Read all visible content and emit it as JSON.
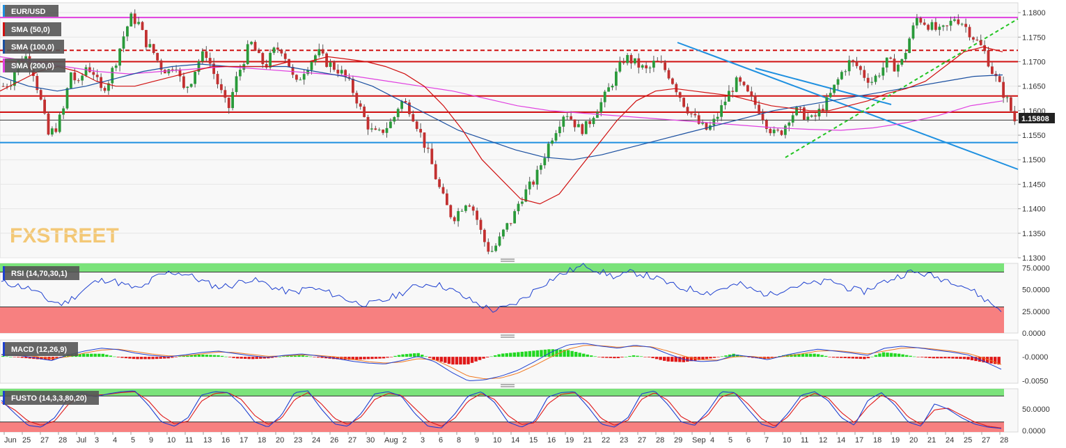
{
  "chart_data": [
    {
      "type": "candlestick",
      "symbol": "EUR/USD",
      "indicators": [
        "SMA (50,0)",
        "SMA (100,0)",
        "SMA (200,0)"
      ],
      "price_label": "1.15808",
      "watermark": "FXSTREET",
      "ylim": [
        1.13,
        1.182
      ],
      "y_ticks": [
        "1.1800",
        "1.1750",
        "1.1700",
        "1.1650",
        "1.1600",
        "1.1550",
        "1.1500",
        "1.1450",
        "1.1400",
        "1.1350",
        "1.1300"
      ],
      "x_ticks": [
        "Jun",
        "25",
        "27",
        "28",
        "Jul",
        "3",
        "4",
        "5",
        "9",
        "10",
        "11",
        "13",
        "16",
        "17",
        "18",
        "20",
        "23",
        "24",
        "26",
        "27",
        "30",
        "Aug",
        "2",
        "3",
        "6",
        "8",
        "9",
        "10",
        "14",
        "15",
        "16",
        "19",
        "21",
        "22",
        "23",
        "27",
        "28",
        "29",
        "Sep",
        "4",
        "5",
        "6",
        "7",
        "10",
        "11",
        "12",
        "14",
        "17",
        "18",
        "19",
        "20",
        "21",
        "24",
        "25",
        "27",
        "28"
      ],
      "horizontal_levels": [
        {
          "value": 1.179,
          "color": "#e040e0",
          "style": "solid"
        },
        {
          "value": 1.1723,
          "color": "#d01010",
          "style": "dashed"
        },
        {
          "value": 1.17,
          "color": "#d01010",
          "style": "solid"
        },
        {
          "value": 1.163,
          "color": "#d01010",
          "style": "solid"
        },
        {
          "value": 1.1597,
          "color": "#d01010",
          "style": "solid"
        },
        {
          "value": 1.1535,
          "color": "#1e90e0",
          "style": "solid"
        }
      ],
      "close_path": [
        1.165,
        1.166,
        1.17,
        1.171,
        1.168,
        1.162,
        1.155,
        1.1565,
        1.16,
        1.168,
        1.165,
        1.169,
        1.168,
        1.164,
        1.166,
        1.17,
        1.175,
        1.179,
        1.178,
        1.174,
        1.172,
        1.169,
        1.168,
        1.17,
        1.164,
        1.166,
        1.17,
        1.172,
        1.168,
        1.164,
        1.16,
        1.166,
        1.17,
        1.174,
        1.171,
        1.169,
        1.172,
        1.173,
        1.17,
        1.165,
        1.168,
        1.17,
        1.172,
        1.17,
        1.169,
        1.168,
        1.166,
        1.163,
        1.159,
        1.156,
        1.155,
        1.1565,
        1.158,
        1.162,
        1.161,
        1.158,
        1.154,
        1.15,
        1.145,
        1.141,
        1.138,
        1.14,
        1.142,
        1.139,
        1.134,
        1.131,
        1.133,
        1.136,
        1.138,
        1.142,
        1.144,
        1.146,
        1.15,
        1.154,
        1.157,
        1.16,
        1.158,
        1.156,
        1.157,
        1.16,
        1.162,
        1.165,
        1.168,
        1.171,
        1.17,
        1.169,
        1.168,
        1.17,
        1.169,
        1.167,
        1.164,
        1.161,
        1.159,
        1.157,
        1.156,
        1.158,
        1.161,
        1.164,
        1.166,
        1.164,
        1.162,
        1.16,
        1.157,
        1.155,
        1.156,
        1.159,
        1.16,
        1.159,
        1.158,
        1.16,
        1.162,
        1.165,
        1.168,
        1.17,
        1.169,
        1.167,
        1.166,
        1.168,
        1.17,
        1.169,
        1.17,
        1.175,
        1.179,
        1.178,
        1.177,
        1.176,
        1.177,
        1.179,
        1.178,
        1.176,
        1.174,
        1.172,
        1.168,
        1.165,
        1.162,
        1.158
      ],
      "sma50": [
        1.164,
        1.166,
        1.168,
        1.169,
        1.168,
        1.166,
        1.165,
        1.165,
        1.166,
        1.167,
        1.168,
        1.169,
        1.169,
        1.169,
        1.169,
        1.17,
        1.17,
        1.171,
        1.1705,
        1.17,
        1.169,
        1.1675,
        1.165,
        1.161,
        1.156,
        1.15,
        1.146,
        1.142,
        1.141,
        1.143,
        1.148,
        1.153,
        1.158,
        1.162,
        1.164,
        1.1645,
        1.164,
        1.1635,
        1.163,
        1.162,
        1.161,
        1.1605,
        1.16,
        1.16,
        1.161,
        1.162,
        1.1635,
        1.1645,
        1.166,
        1.169,
        1.172,
        1.173,
        1.172
      ],
      "sma100": [
        1.167,
        1.165,
        1.164,
        1.165,
        1.1665,
        1.168,
        1.169,
        1.1695,
        1.169,
        1.169,
        1.169,
        1.168,
        1.167,
        1.165,
        1.162,
        1.159,
        1.156,
        1.154,
        1.152,
        1.1505,
        1.15,
        1.151,
        1.1525,
        1.154,
        1.1555,
        1.157,
        1.1585,
        1.16,
        1.161,
        1.162,
        1.163,
        1.164,
        1.165,
        1.166,
        1.167,
        1.1673
      ],
      "sma200": [
        1.171,
        1.17,
        1.169,
        1.168,
        1.1675,
        1.168,
        1.1685,
        1.169,
        1.1685,
        1.168,
        1.1675,
        1.167,
        1.166,
        1.165,
        1.164,
        1.1625,
        1.161,
        1.16,
        1.1595,
        1.159,
        1.1585,
        1.158,
        1.1575,
        1.157,
        1.1565,
        1.1562,
        1.156,
        1.1565,
        1.1575,
        1.159,
        1.161,
        1.162
      ]
    },
    {
      "type": "line",
      "title": "RSI (14,70,30,1)",
      "ylim": [
        0,
        80
      ],
      "y_ticks": [
        "75.0000",
        "50.0000",
        "25.0000",
        "0.0000"
      ],
      "bands": {
        "upper": 70,
        "lower": 30
      },
      "values": [
        58,
        55,
        50,
        38,
        33,
        45,
        58,
        62,
        55,
        50,
        64,
        70,
        68,
        60,
        53,
        55,
        62,
        58,
        50,
        46,
        52,
        48,
        42,
        35,
        33,
        38,
        46,
        54,
        57,
        52,
        42,
        33,
        26,
        30,
        40,
        54,
        64,
        72,
        78,
        70,
        64,
        70,
        66,
        60,
        52,
        50,
        46,
        52,
        56,
        48,
        44,
        52,
        55,
        57,
        60,
        52,
        47,
        56,
        63,
        70,
        68,
        63,
        59,
        50,
        38,
        26
      ]
    },
    {
      "type": "line",
      "title": "MACD (12,26,9)",
      "ylim": [
        -0.0055,
        0.0035
      ],
      "y_ticks": [
        "-0.0000",
        "-0.0050"
      ],
      "macd": [
        0.0005,
        0.0003,
        -0.0002,
        -0.0008,
        0.0004,
        0.0012,
        0.0018,
        0.0015,
        0.0008,
        0.0003,
        0.0,
        0.0004,
        0.0009,
        0.0012,
        0.0007,
        0.0002,
        -0.0001,
        0.0003,
        0.0006,
        0.0002,
        -0.0003,
        -0.0009,
        -0.0013,
        -0.0015,
        -0.0008,
        0.0001,
        -0.001,
        -0.0032,
        -0.005,
        -0.0048,
        -0.004,
        -0.0028,
        -0.001,
        0.001,
        0.0025,
        0.0028,
        0.0022,
        0.0018,
        0.0024,
        0.002,
        0.0006,
        -0.0006,
        -0.001,
        -0.0008,
        0.0004,
        0.0,
        -0.0006,
        0.0003,
        0.001,
        0.0016,
        0.0012,
        0.0008,
        0.0003,
        0.0018,
        0.0022,
        0.0019,
        0.0014,
        0.001,
        0.0004,
        -0.001,
        -0.0026
      ],
      "signal": [
        0.0004,
        0.0004,
        0.0001,
        -0.0004,
        0.0,
        0.0008,
        0.0014,
        0.0016,
        0.0011,
        0.0006,
        0.0002,
        0.0002,
        0.0006,
        0.001,
        0.0009,
        0.0005,
        0.0001,
        0.0002,
        0.0004,
        0.0003,
        0.0,
        -0.0005,
        -0.001,
        -0.0013,
        -0.0011,
        -0.0004,
        -0.0006,
        -0.0022,
        -0.004,
        -0.0046,
        -0.0044,
        -0.0034,
        -0.0018,
        0.0,
        0.0016,
        0.0024,
        0.0023,
        0.002,
        0.0022,
        0.0021,
        0.0012,
        0.0001,
        -0.0006,
        -0.0007,
        0.0,
        0.0001,
        -0.0003,
        0.0001,
        0.0006,
        0.0012,
        0.0013,
        0.001,
        0.0006,
        0.0012,
        0.0018,
        0.0019,
        0.0016,
        0.0012,
        0.0007,
        -0.0003,
        -0.0016
      ]
    },
    {
      "type": "line",
      "title": "FUSTO (14,3,3,80,20)",
      "ylim": [
        0,
        100
      ],
      "y_ticks": [
        "50.0000",
        "0.0000"
      ],
      "bands": {
        "upper": 80,
        "lower": 20
      },
      "k": [
        70,
        40,
        12,
        8,
        30,
        75,
        88,
        78,
        85,
        90,
        92,
        60,
        20,
        10,
        30,
        82,
        90,
        88,
        60,
        20,
        8,
        35,
        88,
        92,
        50,
        15,
        10,
        40,
        85,
        90,
        80,
        40,
        10,
        6,
        38,
        80,
        90,
        65,
        20,
        8,
        22,
        78,
        88,
        90,
        55,
        15,
        8,
        30,
        85,
        92,
        60,
        20,
        12,
        45,
        90,
        88,
        50,
        15,
        6,
        40,
        82,
        90,
        70,
        30,
        12,
        70,
        88,
        60,
        20,
        10,
        62,
        50,
        30,
        15,
        8,
        5
      ],
      "d": [
        65,
        48,
        22,
        12,
        22,
        60,
        82,
        82,
        84,
        88,
        90,
        70,
        35,
        15,
        22,
        68,
        86,
        88,
        72,
        35,
        14,
        28,
        72,
        88,
        62,
        28,
        14,
        32,
        72,
        86,
        82,
        52,
        22,
        10,
        28,
        68,
        86,
        72,
        35,
        14,
        18,
        62,
        84,
        88,
        66,
        28,
        12,
        24,
        72,
        88,
        70,
        32,
        16,
        36,
        78,
        88,
        62,
        28,
        10,
        32,
        72,
        86,
        76,
        42,
        18,
        55,
        82,
        68,
        32,
        14,
        48,
        52,
        36,
        20,
        10,
        6
      ]
    }
  ]
}
